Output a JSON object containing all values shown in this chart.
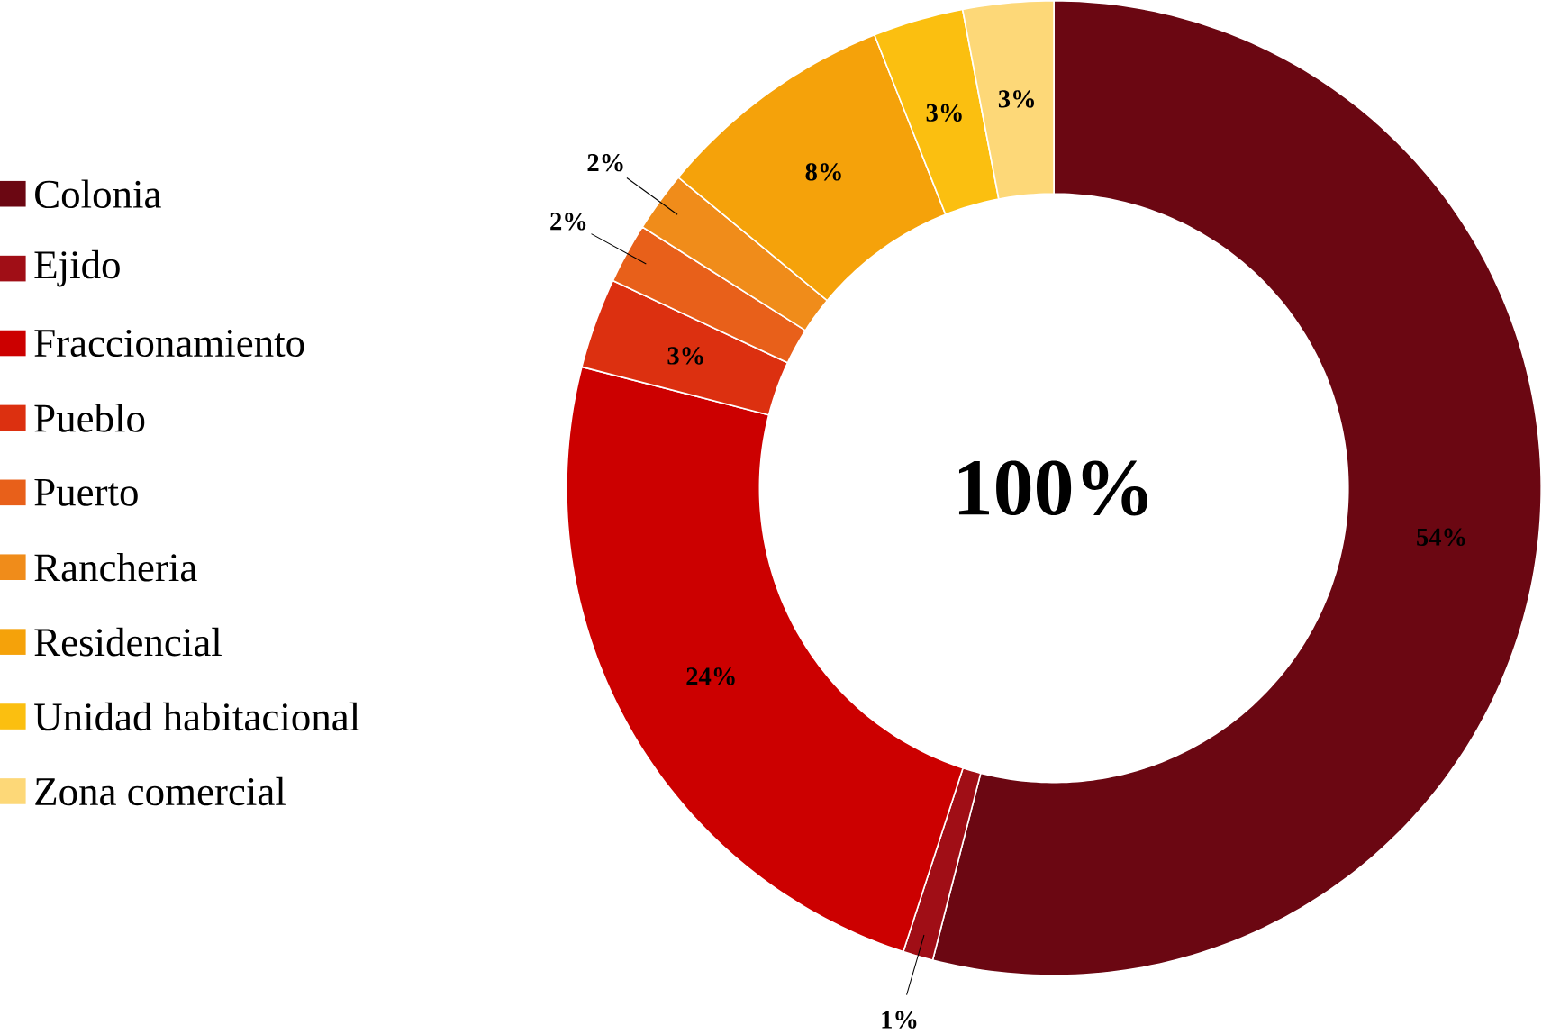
{
  "chart_data": {
    "type": "donut",
    "categories": [
      "Colonia",
      "Ejido",
      "Fraccionamiento",
      "Pueblo",
      "Puerto",
      "Rancheria",
      "Residencial",
      "Unidad habitacional",
      "Zona comercial"
    ],
    "values": [
      54,
      1,
      24,
      3,
      2,
      2,
      8,
      3,
      3
    ],
    "colors": [
      "#6b0712",
      "#a00e16",
      "#cc0000",
      "#dc3010",
      "#e8601a",
      "#f08c1a",
      "#f5a20a",
      "#fbbf10",
      "#fdd878"
    ],
    "value_labels": [
      "54%",
      "1%",
      "24%",
      "3%",
      "2%",
      "2%",
      "8%",
      "3%",
      "3%"
    ],
    "legend": "left",
    "annotations": [
      "100%"
    ]
  }
}
